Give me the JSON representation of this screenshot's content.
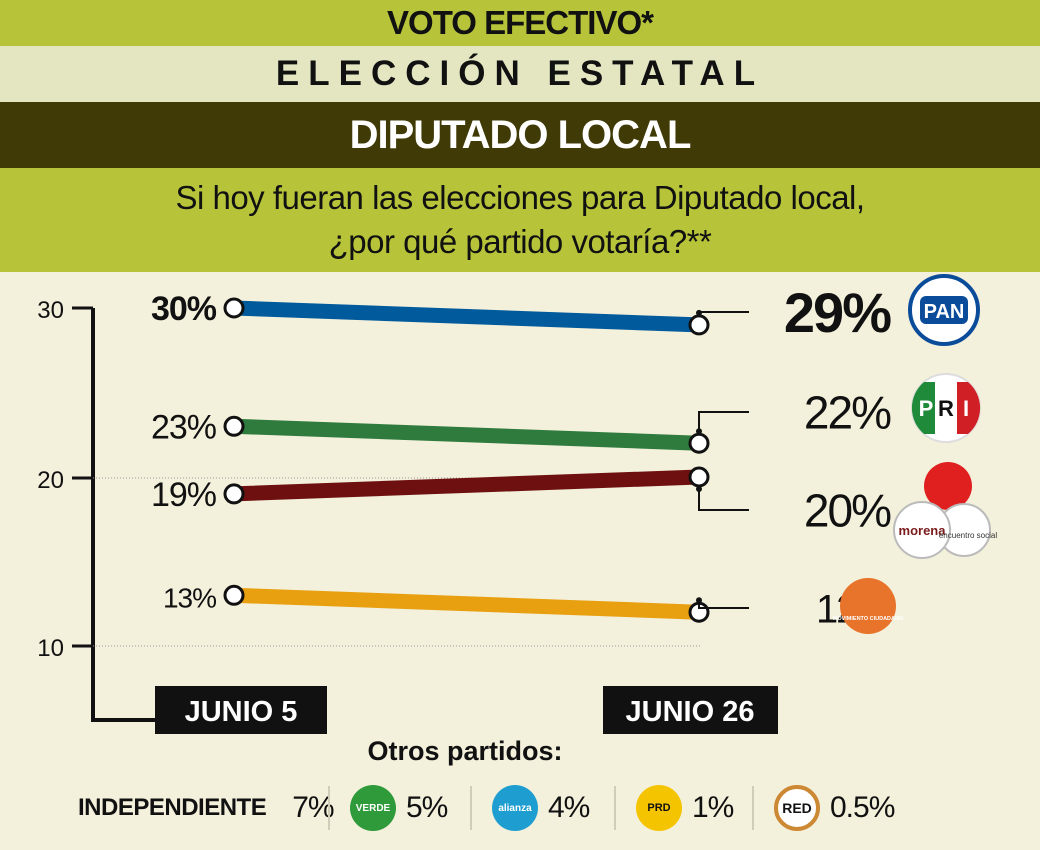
{
  "header": {
    "line1": "VOTO EFECTIVO*",
    "line2": "ELECCIÓN ESTATAL",
    "line3": "DIPUTADO LOCAL",
    "question_line1": "Si hoy fueran las elecciones para Diputado local,",
    "question_line2": "¿por qué partido votaría?**"
  },
  "chart_data": {
    "type": "line",
    "categories": [
      "JUNIO 5",
      "JUNIO 26"
    ],
    "ylim": [
      10,
      30
    ],
    "yticks": [
      "30",
      "20",
      "10"
    ],
    "grid": true,
    "series": [
      {
        "party": "PAN",
        "values": [
          30,
          29
        ],
        "start_label": "30%",
        "end_label": "29%",
        "color": "#005a9c",
        "logo_text": "PAN"
      },
      {
        "party": "PRI",
        "values": [
          23,
          22
        ],
        "start_label": "23%",
        "end_label": "22%",
        "color": "#2e7b3d",
        "logo_text": "PRI"
      },
      {
        "party": "morena",
        "values": [
          19,
          20
        ],
        "start_label": "19%",
        "end_label": "20%",
        "color": "#6e1010",
        "logo_text": "morena",
        "logo_text2": "encuentro social"
      },
      {
        "party": "Movimiento Ciudadano",
        "values": [
          13,
          12
        ],
        "start_label": "13%",
        "end_label": "12%",
        "color": "#e8a010",
        "logo_text": "MOVIMIENTO CIUDADANO"
      }
    ]
  },
  "others": {
    "title": "Otros partidos:",
    "items": [
      {
        "name": "INDEPENDIENTE",
        "value": "7%"
      },
      {
        "logo_text": "VERDE",
        "value": "5%",
        "color": "#2e9a3a"
      },
      {
        "logo_text": "alianza",
        "value": "4%",
        "color": "#1e9ed0"
      },
      {
        "logo_text": "PRD",
        "value": "1%",
        "color": "#f5c400"
      },
      {
        "logo_text": "RED",
        "value": "0.5%",
        "color": "#ffffff"
      }
    ]
  }
}
